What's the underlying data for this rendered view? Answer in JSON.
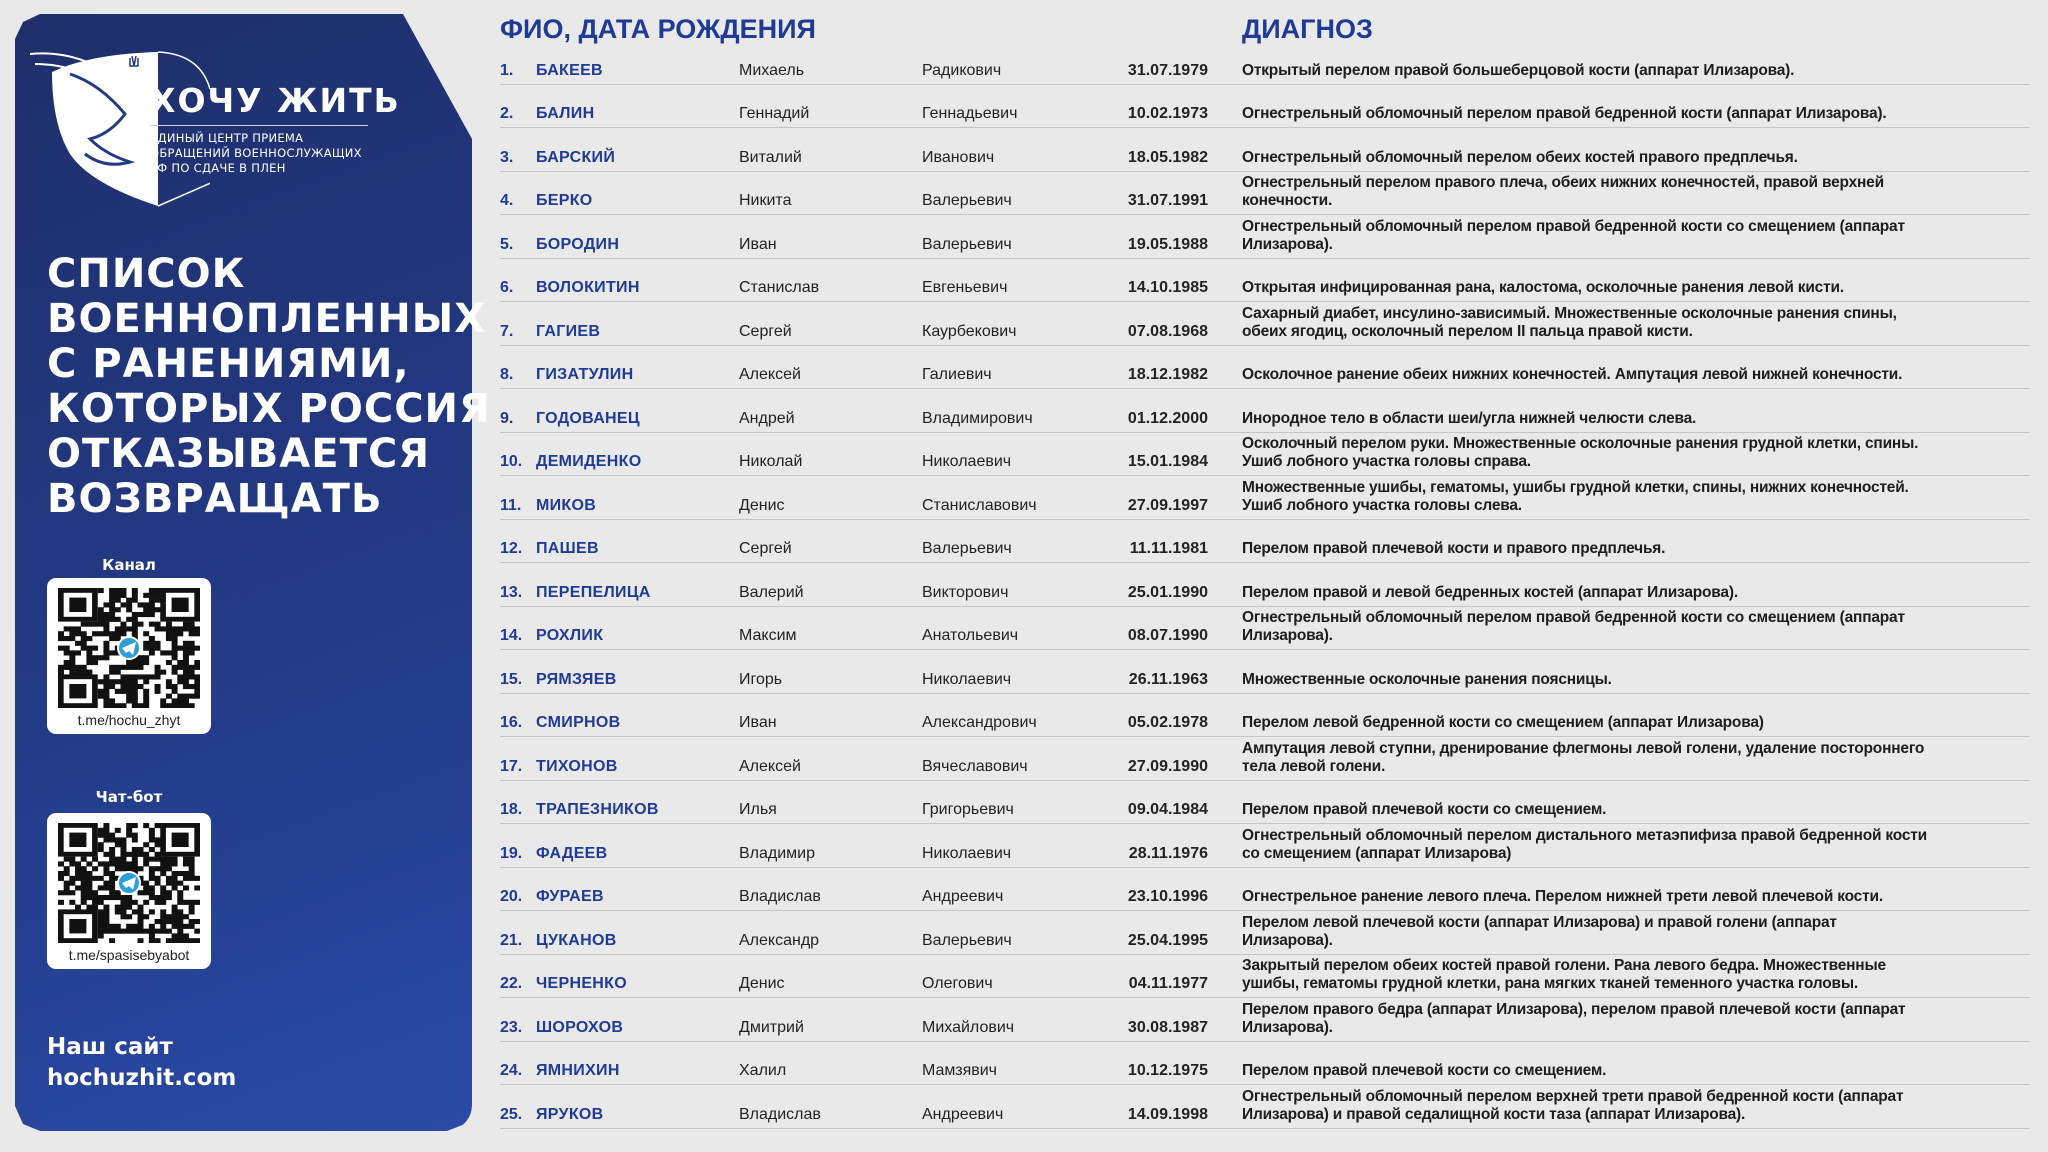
{
  "logo": {
    "brand": "ХОЧУ ЖИТЬ",
    "subtitle": [
      "ЕДИНЫЙ ЦЕНТР ПРИЕМА",
      "ОБРАЩЕНИЙ ВОЕННОСЛУЖАЩИХ",
      "РФ ПО СДАЧЕ В ПЛЕН"
    ]
  },
  "title": [
    "СПИСОК",
    "ВОЕННОПЛЕННЫХ",
    "С РАНЕНИЯМИ,",
    "КОТОРЫХ РОССИЯ",
    "ОТКАЗЫВАЕТСЯ",
    "ВОЗВРАЩАТЬ"
  ],
  "channel": {
    "label": "Канал",
    "url": "t.me/hochu_zhyt"
  },
  "chatbot": {
    "label": "Чат-бот",
    "url": "t.me/spasisebyabot"
  },
  "site": {
    "label": "Наш сайт",
    "url": "hochuzhit.com"
  },
  "colors": {
    "panel": "#233a86",
    "accent": "#1f3b93",
    "background": "#e9e9ea",
    "telegram": "#2a9fd8"
  },
  "table": {
    "header_name": "ФИО, ДАТА РОЖДЕНИЯ",
    "header_diagnosis": "ДИАГНОЗ",
    "rows": [
      {
        "num": "1.",
        "surname": "БАКЕЕВ",
        "name": "Михаель",
        "patronymic": "Радикович",
        "birth": "31.07.1979",
        "diagnosis": [
          "Открытый перелом правой большеберцовой кости (аппарат Илизарова)."
        ]
      },
      {
        "num": "2.",
        "surname": "БАЛИН",
        "name": "Геннадий",
        "patronymic": "Геннадьевич",
        "birth": "10.02.1973",
        "diagnosis": [
          "Огнестрельный обломочный перелом правой бедренной кости (аппарат Илизарова)."
        ]
      },
      {
        "num": "3.",
        "surname": "БАРСКИЙ",
        "name": "Виталий",
        "patronymic": "Иванович",
        "birth": "18.05.1982",
        "diagnosis": [
          "Огнестрельный обломочный перелом обеих костей правого предплечья."
        ]
      },
      {
        "num": "4.",
        "surname": "БЕРКО",
        "name": "Никита",
        "patronymic": "Валерьевич",
        "birth": "31.07.1991",
        "diagnosis": [
          "Огнестрельный перелом правого плеча, обеих нижних конечностей, правой верхней",
          "конечности."
        ]
      },
      {
        "num": "5.",
        "surname": "БОРОДИН",
        "name": "Иван",
        "patronymic": "Валерьевич",
        "birth": "19.05.1988",
        "diagnosis": [
          "Огнестрельный обломочный перелом правой бедренной кости со смещением (аппарат",
          "Илизарова)."
        ]
      },
      {
        "num": "6.",
        "surname": "ВОЛОКИТИН",
        "name": "Станислав",
        "patronymic": "Евгеньевич",
        "birth": "14.10.1985",
        "diagnosis": [
          "Открытая инфицированная рана, калостома, осколочные ранения левой кисти."
        ]
      },
      {
        "num": "7.",
        "surname": "ГАГИЕВ",
        "name": "Сергей",
        "patronymic": "Каурбекович",
        "birth": "07.08.1968",
        "diagnosis": [
          "Сахарный диабет, инсулино-зависимый. Множественные осколочные ранения спины,",
          "обеих ягодиц, осколочный перелом II пальца правой кисти."
        ]
      },
      {
        "num": "8.",
        "surname": "ГИЗАТУЛИН",
        "name": "Алексей",
        "patronymic": "Галиевич",
        "birth": "18.12.1982",
        "diagnosis": [
          "Осколочное ранение обеих нижних конечностей. Ампутация левой нижней конечности."
        ]
      },
      {
        "num": "9.",
        "surname": "ГОДОВАНЕЦ",
        "name": "Андрей",
        "patronymic": "Владимирович",
        "birth": "01.12.2000",
        "diagnosis": [
          "Инородное тело в области шеи/угла нижней челюсти слева."
        ]
      },
      {
        "num": "10.",
        "surname": "ДЕМИДЕНКО",
        "name": "Николай",
        "patronymic": "Николаевич",
        "birth": "15.01.1984",
        "diagnosis": [
          "Осколочный перелом руки. Множественные осколочные ранения грудной клетки, спины.",
          "Ушиб лобного участка головы справа."
        ]
      },
      {
        "num": "11.",
        "surname": "МИКОВ",
        "name": "Денис",
        "patronymic": "Станиславович",
        "birth": "27.09.1997",
        "diagnosis": [
          "Множественные ушибы, гематомы, ушибы грудной клетки, спины, нижних конечностей.",
          "Ушиб лобного участка головы слева."
        ]
      },
      {
        "num": "12.",
        "surname": "ПАШЕВ",
        "name": "Сергей",
        "patronymic": "Валерьевич",
        "birth": "11.11.1981",
        "diagnosis": [
          "Перелом правой плечевой кости и правого предплечья."
        ]
      },
      {
        "num": "13.",
        "surname": "ПЕРЕПЕЛИЦА",
        "name": "Валерий",
        "patronymic": "Викторович",
        "birth": "25.01.1990",
        "diagnosis": [
          "Перелом правой и левой бедренных костей (аппарат Илизарова)."
        ]
      },
      {
        "num": "14.",
        "surname": "РОХЛИК",
        "name": "Максим",
        "patronymic": "Анатольевич",
        "birth": "08.07.1990",
        "diagnosis": [
          "Огнестрельный обломочный перелом правой бедренной кости со смещением (аппарат",
          "Илизарова)."
        ]
      },
      {
        "num": "15.",
        "surname": "РЯМЗЯЕВ",
        "name": "Игорь",
        "patronymic": "Николаевич",
        "birth": "26.11.1963",
        "diagnosis": [
          "Множественные осколочные ранения поясницы."
        ]
      },
      {
        "num": "16.",
        "surname": "СМИРНОВ",
        "name": "Иван",
        "patronymic": "Александрович",
        "birth": "05.02.1978",
        "diagnosis": [
          "Перелом левой бедренной кости со смещением (аппарат Илизарова)"
        ]
      },
      {
        "num": "17.",
        "surname": "ТИХОНОВ",
        "name": "Алексей",
        "patronymic": "Вячеславович",
        "birth": "27.09.1990",
        "diagnosis": [
          "Ампутация левой ступни, дренирование флегмоны левой голени, удаление постороннего",
          "тела левой голени."
        ]
      },
      {
        "num": "18.",
        "surname": "ТРАПЕЗНИКОВ",
        "name": "Илья",
        "patronymic": "Григорьевич",
        "birth": "09.04.1984",
        "diagnosis": [
          "Перелом правой плечевой кости со смещением."
        ]
      },
      {
        "num": "19.",
        "surname": "ФАДЕЕВ",
        "name": "Владимир",
        "patronymic": "Николаевич",
        "birth": "28.11.1976",
        "diagnosis": [
          "Огнестрельный обломочный перелом дистального метаэпифиза правой бедренной кости",
          "со смещением (аппарат Илизарова)"
        ]
      },
      {
        "num": "20.",
        "surname": "ФУРАЕВ",
        "name": "Владислав",
        "patronymic": "Андреевич",
        "birth": "23.10.1996",
        "diagnosis": [
          "Огнестрельное ранение левого плеча. Перелом нижней трети левой плечевой кости."
        ]
      },
      {
        "num": "21.",
        "surname": "ЦУКАНОВ",
        "name": "Александр",
        "patronymic": "Валерьевич",
        "birth": "25.04.1995",
        "diagnosis": [
          "Перелом левой плечевой кости (аппарат Илизарова) и правой голени (аппарат",
          "Илизарова)."
        ]
      },
      {
        "num": "22.",
        "surname": "ЧЕРНЕНКО",
        "name": "Денис",
        "patronymic": "Олегович",
        "birth": "04.11.1977",
        "diagnosis": [
          "Закрытый перелом обеих костей правой голени. Рана левого бедра. Множественные",
          "ушибы, гематомы грудной клетки, рана мягких тканей теменного участка головы."
        ]
      },
      {
        "num": "23.",
        "surname": "ШОРОХОВ",
        "name": "Дмитрий",
        "patronymic": "Михайлович",
        "birth": "30.08.1987",
        "diagnosis": [
          "Перелом правого бедра (аппарат Илизарова), перелом правой плечевой кости (аппарат",
          "Илизарова)."
        ]
      },
      {
        "num": "24.",
        "surname": "ЯМНИХИН",
        "name": "Халил",
        "patronymic": "Мамзявич",
        "birth": "10.12.1975",
        "diagnosis": [
          "Перелом правой плечевой кости со смещением."
        ]
      },
      {
        "num": "25.",
        "surname": "ЯРУКОВ",
        "name": "Владислав",
        "patronymic": "Андреевич",
        "birth": "14.09.1998",
        "diagnosis": [
          "Огнестрельный обломочный перелом верхней трети правой бедренной кости (аппарат",
          "Илизарова) и правой седалищной кости таза (аппарат Илизарова)."
        ]
      }
    ]
  }
}
